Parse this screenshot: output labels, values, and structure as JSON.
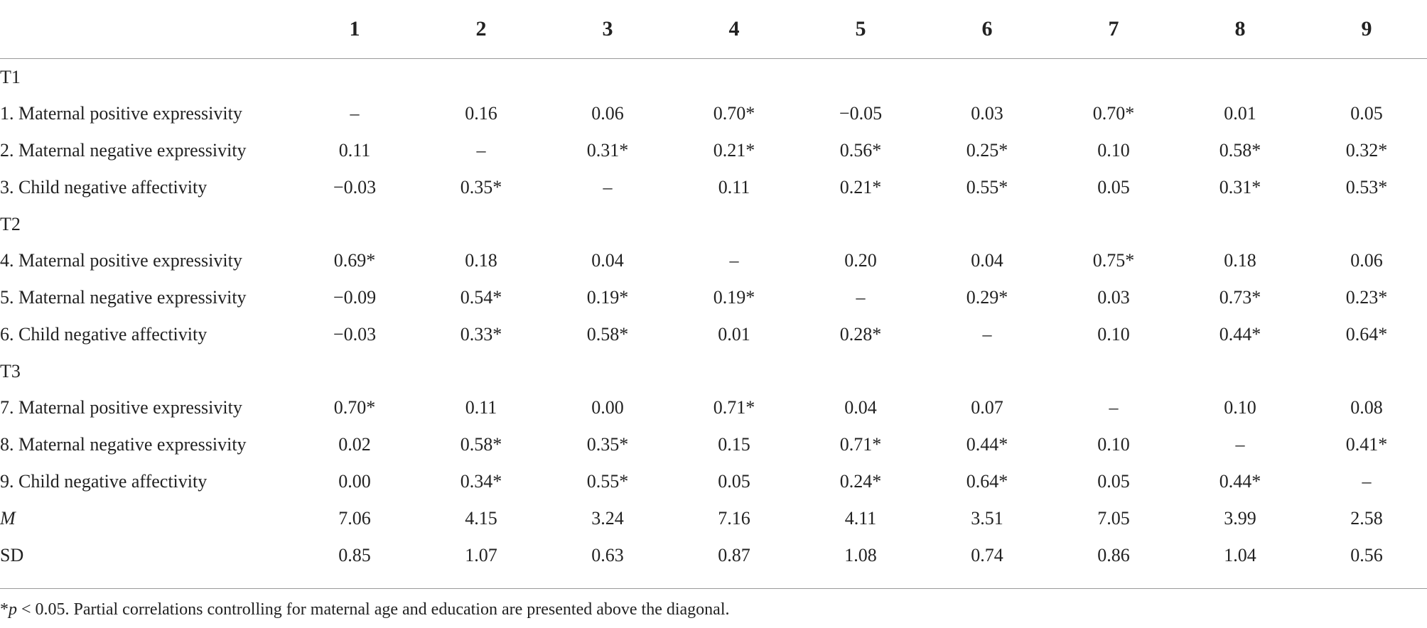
{
  "table": {
    "column_headers": [
      "1",
      "2",
      "3",
      "4",
      "5",
      "6",
      "7",
      "8",
      "9"
    ],
    "sections": [
      {
        "label": "T1",
        "rows": [
          {
            "label": "1. Maternal positive expressivity",
            "values": [
              "–",
              "0.16",
              "0.06",
              "0.70*",
              "−0.05",
              "0.03",
              "0.70*",
              "0.01",
              "0.05"
            ]
          },
          {
            "label": "2. Maternal negative expressivity",
            "values": [
              "0.11",
              "–",
              "0.31*",
              "0.21*",
              "0.56*",
              "0.25*",
              "0.10",
              "0.58*",
              "0.32*"
            ]
          },
          {
            "label": "3. Child negative affectivity",
            "values": [
              "−0.03",
              "0.35*",
              "–",
              "0.11",
              "0.21*",
              "0.55*",
              "0.05",
              "0.31*",
              "0.53*"
            ]
          }
        ]
      },
      {
        "label": "T2",
        "rows": [
          {
            "label": "4. Maternal positive expressivity",
            "values": [
              "0.69*",
              "0.18",
              "0.04",
              "–",
              "0.20",
              "0.04",
              "0.75*",
              "0.18",
              "0.06"
            ]
          },
          {
            "label": "5. Maternal negative expressivity",
            "values": [
              "−0.09",
              "0.54*",
              "0.19*",
              "0.19*",
              "–",
              "0.29*",
              "0.03",
              "0.73*",
              "0.23*"
            ]
          },
          {
            "label": "6. Child negative affectivity",
            "values": [
              "−0.03",
              "0.33*",
              "0.58*",
              "0.01",
              "0.28*",
              "–",
              "0.10",
              "0.44*",
              "0.64*"
            ]
          }
        ]
      },
      {
        "label": "T3",
        "rows": [
          {
            "label": "7. Maternal positive expressivity",
            "values": [
              "0.70*",
              "0.11",
              "0.00",
              "0.71*",
              "0.04",
              "0.07",
              "–",
              "0.10",
              "0.08"
            ]
          },
          {
            "label": "8. Maternal negative expressivity",
            "values": [
              "0.02",
              "0.58*",
              "0.35*",
              "0.15",
              "0.71*",
              "0.44*",
              "0.10",
              "–",
              "0.41*"
            ]
          },
          {
            "label": "9. Child negative affectivity",
            "values": [
              "0.00",
              "0.34*",
              "0.55*",
              "0.05",
              "0.24*",
              "0.64*",
              "0.05",
              "0.44*",
              "–"
            ]
          }
        ]
      }
    ],
    "summary_rows": [
      {
        "label": "M",
        "values": [
          "7.06",
          "4.15",
          "3.24",
          "7.16",
          "4.11",
          "3.51",
          "7.05",
          "3.99",
          "2.58"
        ]
      },
      {
        "label": "SD",
        "values": [
          "0.85",
          "1.07",
          "0.63",
          "0.87",
          "1.08",
          "0.74",
          "0.86",
          "1.04",
          "0.56"
        ]
      }
    ]
  },
  "footnote": {
    "star": "*",
    "p_symbol": "p",
    "text": " < 0.05. Partial correlations controlling for maternal age and education are presented above the diagonal."
  }
}
